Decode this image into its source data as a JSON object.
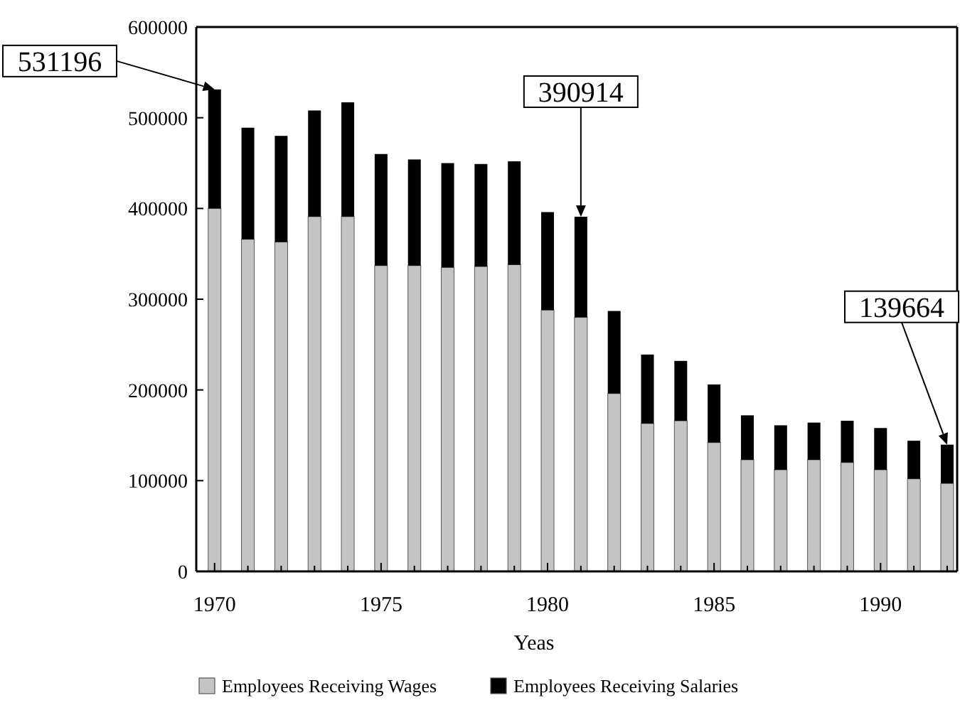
{
  "chart_data": {
    "type": "bar",
    "stacked": true,
    "xlabel": "Yeas",
    "x": [
      1970,
      1971,
      1972,
      1973,
      1974,
      1975,
      1976,
      1977,
      1978,
      1979,
      1980,
      1981,
      1982,
      1983,
      1984,
      1985,
      1986,
      1987,
      1988,
      1989,
      1990,
      1991,
      1992
    ],
    "series": [
      {
        "name": "Employees Receiving Wages",
        "color": "#c4c4c4",
        "values": [
          400000,
          366000,
          363000,
          391000,
          391000,
          337000,
          337000,
          335000,
          336000,
          338000,
          288000,
          280000,
          196000,
          163000,
          166000,
          142000,
          123000,
          112000,
          123000,
          120000,
          112000,
          102000,
          97000
        ]
      },
      {
        "name": "Employees Receiving Salaries",
        "color": "#000000",
        "values": [
          131196,
          123000,
          117000,
          117000,
          126000,
          123000,
          117000,
          115000,
          113000,
          114000,
          108000,
          110914,
          91000,
          76000,
          66000,
          64000,
          49000,
          49000,
          41000,
          46000,
          46000,
          42000,
          42664
        ]
      }
    ],
    "xlim": [
      1969.45,
      1992.3
    ],
    "xticks": [
      1970,
      {
        "value": 1971,
        "label": null
      },
      {
        "value": 1972,
        "label": null
      },
      {
        "value": 1973,
        "label": null
      },
      {
        "value": 1974,
        "label": null
      },
      1975,
      {
        "value": 1976,
        "label": null
      },
      {
        "value": 1977,
        "label": null
      },
      {
        "value": 1978,
        "label": null
      },
      {
        "value": 1979,
        "label": null
      },
      1980,
      {
        "value": 1981,
        "label": null
      },
      {
        "value": 1982,
        "label": null
      },
      {
        "value": 1983,
        "label": null
      },
      {
        "value": 1984,
        "label": null
      },
      1985,
      {
        "value": 1986,
        "label": null
      },
      {
        "value": 1987,
        "label": null
      },
      {
        "value": 1988,
        "label": null
      },
      {
        "value": 1989,
        "label": null
      },
      1990,
      {
        "value": 1991,
        "label": null
      },
      {
        "value": 1992,
        "label": null
      }
    ],
    "ylim": [
      0,
      600000
    ],
    "yticks": [
      0,
      100000,
      200000,
      300000,
      400000,
      500000,
      600000
    ],
    "annotations": [
      {
        "text": "531196",
        "x": 1970,
        "y": 531196
      },
      {
        "text": "390914",
        "x": 1981,
        "y": 390914
      },
      {
        "text": "139664",
        "x": 1992,
        "y": 139664
      }
    ],
    "legend": "bottom",
    "grid": false
  }
}
